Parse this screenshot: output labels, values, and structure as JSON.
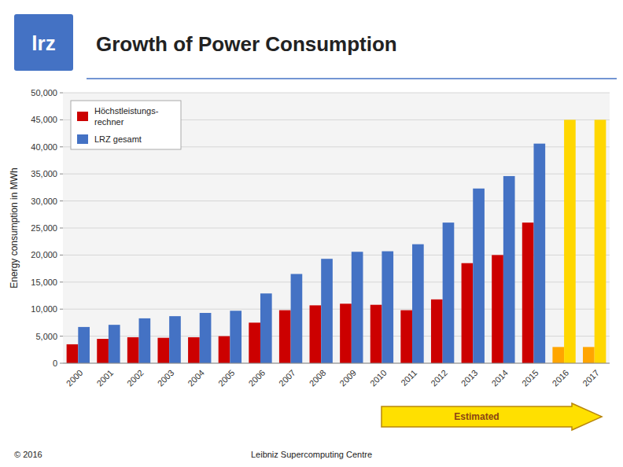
{
  "chart_data": {
    "type": "bar",
    "title": "Growth of Power Consumption",
    "ylabel": "Energy consumption in MWh",
    "categories": [
      "2000",
      "2001",
      "2002",
      "2003",
      "2004",
      "2005",
      "2006",
      "2007",
      "2008",
      "2009",
      "2010",
      "2011",
      "2012",
      "2013",
      "2014",
      "2015",
      "2016",
      "2017"
    ],
    "series": [
      {
        "name": "Höchstleistungs-\nrechner",
        "color": "#CC0000",
        "colors": [
          "#CC0000",
          "#CC0000",
          "#CC0000",
          "#CC0000",
          "#CC0000",
          "#CC0000",
          "#CC0000",
          "#CC0000",
          "#CC0000",
          "#CC0000",
          "#CC0000",
          "#CC0000",
          "#CC0000",
          "#CC0000",
          "#CC0000",
          "#CC0000",
          "#FFA500",
          "#FFA500"
        ],
        "values": [
          3500,
          4500,
          4800,
          4700,
          4800,
          5000,
          7500,
          9800,
          10700,
          11000,
          10800,
          9800,
          11800,
          18500,
          20000,
          26000,
          3000,
          3000
        ]
      },
      {
        "name": "LRZ gesamt",
        "color": "#4472C4",
        "colors": [
          "#4472C4",
          "#4472C4",
          "#4472C4",
          "#4472C4",
          "#4472C4",
          "#4472C4",
          "#4472C4",
          "#4472C4",
          "#4472C4",
          "#4472C4",
          "#4472C4",
          "#4472C4",
          "#4472C4",
          "#4472C4",
          "#4472C4",
          "#4472C4",
          "#FFD700",
          "#FFD700"
        ],
        "values": [
          6700,
          7100,
          8300,
          8700,
          9300,
          9700,
          12900,
          16500,
          19300,
          20600,
          20700,
          22000,
          26000,
          32300,
          34600,
          40600,
          45000,
          45000
        ]
      }
    ],
    "ylim": [
      0,
      50000
    ],
    "yticks": [
      0,
      {
        "value": 5000,
        "label": "5,000"
      },
      {
        "value": 10000,
        "label": "10,000"
      },
      {
        "value": 15000,
        "label": "15,000"
      },
      {
        "value": 20000,
        "label": "20,000"
      },
      {
        "value": 25000,
        "label": "25,000"
      },
      {
        "value": 30000,
        "label": "30,000"
      },
      {
        "value": 35000,
        "label": "35,000"
      },
      {
        "value": 40000,
        "label": "40,000"
      },
      {
        "value": 45000,
        "label": "45,000"
      },
      {
        "value": 50000,
        "label": "50,000"
      }
    ],
    "grid": true,
    "legend": "upper left",
    "annotations": [
      "lrz",
      "Estimated",
      "© 2016",
      "Leibniz Supercomputing Centre"
    ]
  }
}
